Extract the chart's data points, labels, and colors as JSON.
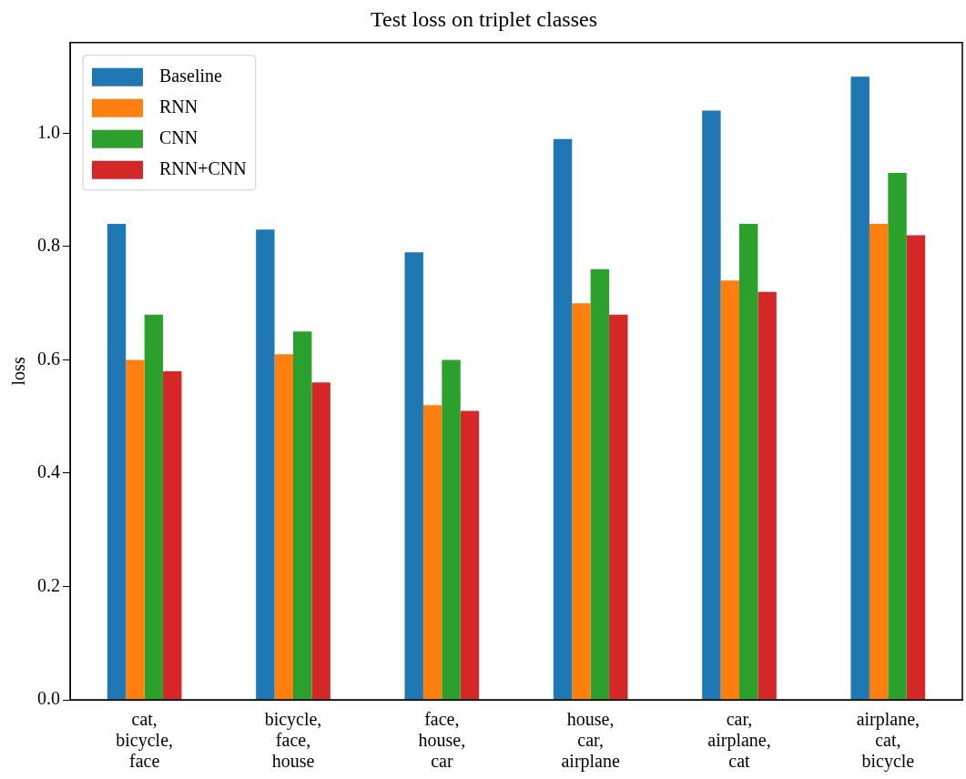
{
  "chart_data": {
    "type": "bar",
    "title": "Test loss on triplet classes",
    "ylabel": "loss",
    "categories": [
      "cat, bicycle, face",
      "bicycle, face, house",
      "face, house, car",
      "house, car, airplane",
      "car, airplane, cat",
      "airplane, cat, bicycle"
    ],
    "series": [
      {
        "name": "Baseline",
        "color": "#1f77b4",
        "values": [
          0.84,
          0.83,
          0.79,
          0.99,
          1.04,
          1.1
        ]
      },
      {
        "name": "RNN",
        "color": "#ff7f0e",
        "values": [
          0.6,
          0.61,
          0.52,
          0.7,
          0.74,
          0.84
        ]
      },
      {
        "name": "CNN",
        "color": "#2ca02c",
        "values": [
          0.68,
          0.65,
          0.6,
          0.76,
          0.84,
          0.93
        ]
      },
      {
        "name": "RNN+CNN",
        "color": "#d62728",
        "values": [
          0.58,
          0.56,
          0.51,
          0.68,
          0.72,
          0.82
        ]
      }
    ],
    "ylim": [
      0,
      1.16
    ],
    "yticks": [
      {
        "value": 0,
        "label": "0.0"
      },
      0.2,
      0.4,
      0.6,
      0.8,
      {
        "value": 1,
        "label": "1.0"
      }
    ],
    "grid": false,
    "legend": "top left"
  }
}
